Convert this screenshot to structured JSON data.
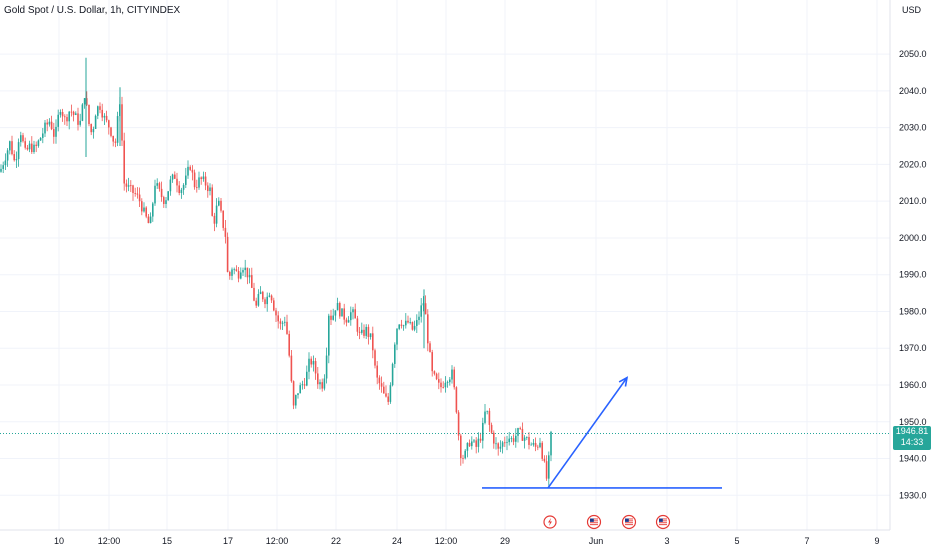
{
  "header": {
    "title": "Gold Spot / U.S. Dollar, 1h, CITYINDEX",
    "currency": "USD"
  },
  "price_badge": {
    "price": "1946.81",
    "countdown": "14:33"
  },
  "colors": {
    "up": "#26a69a",
    "down": "#ef5350",
    "drawing": "#2962ff",
    "event": "#e53935"
  },
  "chart_data": {
    "type": "candlestick",
    "title": "Gold Spot / U.S. Dollar, 1h, CITYINDEX",
    "y_unit": "USD",
    "ylim": [
      1926,
      2062
    ],
    "y_ticks": [
      2050,
      2040,
      2030,
      2020,
      2010,
      2000,
      1990,
      1980,
      1970,
      1960,
      1950,
      1940,
      1930
    ],
    "x_ticks": [
      "10",
      "12:00",
      "15",
      "17",
      "12:00",
      "22",
      "24",
      "12:00",
      "29",
      "Jun",
      "3",
      "5",
      "7",
      "9"
    ],
    "last_price": 1946.81,
    "grid": true,
    "close_path": [
      [
        0,
        2018
      ],
      [
        5,
        2022
      ],
      [
        10,
        2026
      ],
      [
        15,
        2020
      ],
      [
        20,
        2030
      ],
      [
        25,
        2023
      ],
      [
        30,
        2025
      ],
      [
        35,
        2024
      ],
      [
        40,
        2027
      ],
      [
        45,
        2030
      ],
      [
        50,
        2032
      ],
      [
        55,
        2027
      ],
      [
        60,
        2036
      ],
      [
        65,
        2032
      ],
      [
        70,
        2035
      ],
      [
        75,
        2033
      ],
      [
        80,
        2031
      ],
      [
        85,
        2040
      ],
      [
        88,
        2032
      ],
      [
        92,
        2028
      ],
      [
        96,
        2035
      ],
      [
        100,
        2036
      ],
      [
        105,
        2032
      ],
      [
        110,
        2030
      ],
      [
        115,
        2025
      ],
      [
        118,
        2033
      ],
      [
        120,
        2038
      ],
      [
        124,
        2015
      ],
      [
        130,
        2013
      ],
      [
        135,
        2012
      ],
      [
        140,
        2010
      ],
      [
        145,
        2006
      ],
      [
        150,
        2003
      ],
      [
        155,
        2015
      ],
      [
        160,
        2012
      ],
      [
        165,
        2010
      ],
      [
        170,
        2015
      ],
      [
        175,
        2017
      ],
      [
        180,
        2013
      ],
      [
        185,
        2015
      ],
      [
        190,
        2020
      ],
      [
        195,
        2014
      ],
      [
        200,
        2016
      ],
      [
        205,
        2015
      ],
      [
        210,
        2013
      ],
      [
        213,
        2003
      ],
      [
        218,
        2010
      ],
      [
        222,
        2005
      ],
      [
        226,
        2000
      ],
      [
        228,
        1988
      ],
      [
        232,
        1992
      ],
      [
        238,
        1990
      ],
      [
        242,
        1993
      ],
      [
        248,
        1990
      ],
      [
        252,
        1986
      ],
      [
        256,
        1981
      ],
      [
        260,
        1985
      ],
      [
        266,
        1983
      ],
      [
        270,
        1986
      ],
      [
        275,
        1980
      ],
      [
        280,
        1976
      ],
      [
        285,
        1978
      ],
      [
        288,
        1972
      ],
      [
        291,
        1962
      ],
      [
        293,
        1953
      ],
      [
        297,
        1958
      ],
      [
        302,
        1960
      ],
      [
        306,
        1962
      ],
      [
        310,
        1967
      ],
      [
        314,
        1965
      ],
      [
        318,
        1961
      ],
      [
        322,
        1960
      ],
      [
        326,
        1965
      ],
      [
        328,
        1980
      ],
      [
        332,
        1978
      ],
      [
        336,
        1982
      ],
      [
        340,
        1980
      ],
      [
        346,
        1978
      ],
      [
        352,
        1980
      ],
      [
        356,
        1977
      ],
      [
        360,
        1973
      ],
      [
        366,
        1975
      ],
      [
        372,
        1972
      ],
      [
        376,
        1962
      ],
      [
        380,
        1960
      ],
      [
        384,
        1957
      ],
      [
        388,
        1955
      ],
      [
        392,
        1965
      ],
      [
        396,
        1975
      ],
      [
        400,
        1978
      ],
      [
        404,
        1976
      ],
      [
        408,
        1977
      ],
      [
        412,
        1975
      ],
      [
        416,
        1976
      ],
      [
        420,
        1980
      ],
      [
        424,
        1983
      ],
      [
        428,
        1972
      ],
      [
        432,
        1963
      ],
      [
        436,
        1961
      ],
      [
        440,
        1959
      ],
      [
        446,
        1962
      ],
      [
        452,
        1963
      ],
      [
        456,
        1955
      ],
      [
        460,
        1942
      ],
      [
        464,
        1940
      ],
      [
        470,
        1945
      ],
      [
        476,
        1943
      ],
      [
        482,
        1947
      ],
      [
        486,
        1954
      ],
      [
        490,
        1948
      ],
      [
        494,
        1945
      ],
      [
        498,
        1942
      ],
      [
        502,
        1944
      ],
      [
        508,
        1946
      ],
      [
        512,
        1945
      ],
      [
        518,
        1947
      ],
      [
        524,
        1946
      ],
      [
        530,
        1944
      ],
      [
        536,
        1943
      ],
      [
        540,
        1945
      ],
      [
        543,
        1940
      ],
      [
        547,
        1934
      ],
      [
        551,
        1946
      ]
    ],
    "drawings": {
      "support_line": 1932,
      "projection_arrow": {
        "from": 1932,
        "to": 1962
      }
    },
    "events": [
      "lightning",
      "us-flag",
      "us-flag",
      "us-flag"
    ]
  }
}
